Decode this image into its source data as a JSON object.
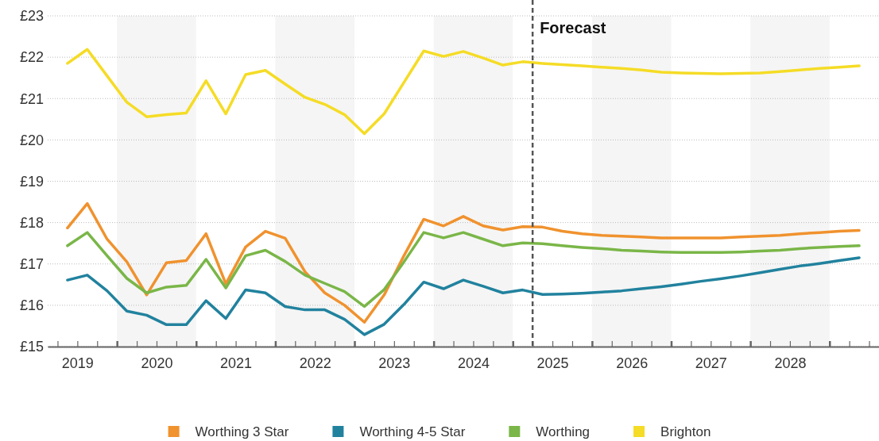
{
  "chart_data": {
    "type": "line",
    "x": [
      2019.375,
      2019.625,
      2019.875,
      2020.125,
      2020.375,
      2020.625,
      2020.875,
      2021.125,
      2021.375,
      2021.625,
      2021.875,
      2022.125,
      2022.375,
      2022.625,
      2022.875,
      2023.125,
      2023.375,
      2023.625,
      2023.875,
      2024.125,
      2024.375,
      2024.625,
      2024.875,
      2025.125,
      2025.375,
      2025.625,
      2025.875,
      2026.125,
      2026.375,
      2026.625,
      2026.875,
      2027.125,
      2027.375,
      2027.625,
      2027.875,
      2028.125,
      2028.375,
      2028.625,
      2028.875,
      2029.125,
      2029.375
    ],
    "series": [
      {
        "name": "Worthing 3 Star",
        "color": "#f0922e",
        "values": [
          17.87,
          18.46,
          17.6,
          17.05,
          16.25,
          17.03,
          17.08,
          17.73,
          16.52,
          17.41,
          17.79,
          17.62,
          16.81,
          16.3,
          16.0,
          15.59,
          16.25,
          17.2,
          18.08,
          17.92,
          18.15,
          17.92,
          17.82,
          17.9,
          17.89,
          17.79,
          17.73,
          17.69,
          17.67,
          17.65,
          17.63,
          17.63,
          17.63,
          17.63,
          17.65,
          17.67,
          17.69,
          17.73,
          17.76,
          17.79,
          17.81
        ]
      },
      {
        "name": "Worthing 4-5 Star",
        "color": "#21829e",
        "values": [
          16.61,
          16.73,
          16.35,
          15.86,
          15.76,
          15.53,
          15.53,
          16.11,
          15.68,
          16.37,
          16.3,
          15.97,
          15.89,
          15.89,
          15.66,
          15.29,
          15.54,
          16.02,
          16.56,
          16.4,
          16.61,
          16.46,
          16.3,
          16.37,
          16.26,
          16.27,
          16.29,
          16.32,
          16.35,
          16.4,
          16.45,
          16.51,
          16.58,
          16.64,
          16.71,
          16.79,
          16.87,
          16.95,
          17.01,
          17.08,
          17.15
        ]
      },
      {
        "name": "Worthing",
        "color": "#7ab648",
        "values": [
          17.44,
          17.76,
          17.2,
          16.65,
          16.3,
          16.44,
          16.48,
          17.11,
          16.42,
          17.2,
          17.33,
          17.06,
          16.73,
          16.53,
          16.33,
          15.97,
          16.38,
          17.05,
          17.76,
          17.63,
          17.76,
          17.6,
          17.44,
          17.51,
          17.49,
          17.44,
          17.4,
          17.37,
          17.33,
          17.31,
          17.29,
          17.28,
          17.28,
          17.28,
          17.29,
          17.31,
          17.33,
          17.37,
          17.4,
          17.42,
          17.44
        ]
      },
      {
        "name": "Brighton",
        "color": "#f5dc26",
        "values": [
          21.85,
          22.19,
          21.55,
          20.91,
          20.56,
          20.61,
          20.65,
          21.43,
          20.63,
          21.58,
          21.68,
          21.35,
          21.03,
          20.86,
          20.61,
          20.15,
          20.63,
          21.39,
          22.15,
          22.02,
          22.14,
          21.98,
          21.81,
          21.89,
          21.85,
          21.82,
          21.79,
          21.76,
          21.73,
          21.69,
          21.64,
          21.62,
          21.61,
          21.6,
          21.61,
          21.62,
          21.65,
          21.69,
          21.73,
          21.76,
          21.79
        ]
      }
    ],
    "xlim": [
      2019.125,
      2029.625
    ],
    "xticks": [
      {
        "value": 2019.25,
        "label": null
      },
      {
        "value": 2019.5,
        "label": "2019"
      },
      {
        "value": 2019.75,
        "label": null
      },
      {
        "value": 2020,
        "label": null
      },
      {
        "value": 2020.25,
        "label": null
      },
      {
        "value": 2020.5,
        "label": "2020"
      },
      {
        "value": 2020.75,
        "label": null
      },
      {
        "value": 2021,
        "label": null
      },
      {
        "value": 2021.25,
        "label": null
      },
      {
        "value": 2021.5,
        "label": "2021"
      },
      {
        "value": 2021.75,
        "label": null
      },
      {
        "value": 2022,
        "label": null
      },
      {
        "value": 2022.25,
        "label": null
      },
      {
        "value": 2022.5,
        "label": "2022"
      },
      {
        "value": 2022.75,
        "label": null
      },
      {
        "value": 2023,
        "label": null
      },
      {
        "value": 2023.25,
        "label": null
      },
      {
        "value": 2023.5,
        "label": "2023"
      },
      {
        "value": 2023.75,
        "label": null
      },
      {
        "value": 2024,
        "label": null
      },
      {
        "value": 2024.25,
        "label": null
      },
      {
        "value": 2024.5,
        "label": "2024"
      },
      {
        "value": 2024.75,
        "label": null
      },
      {
        "value": 2025,
        "label": null
      },
      {
        "value": 2025.25,
        "label": null
      },
      {
        "value": 2025.5,
        "label": "2025"
      },
      {
        "value": 2025.75,
        "label": null
      },
      {
        "value": 2026,
        "label": null
      },
      {
        "value": 2026.25,
        "label": null
      },
      {
        "value": 2026.5,
        "label": "2026"
      },
      {
        "value": 2026.75,
        "label": null
      },
      {
        "value": 2027,
        "label": null
      },
      {
        "value": 2027.25,
        "label": null
      },
      {
        "value": 2027.5,
        "label": "2027"
      },
      {
        "value": 2027.75,
        "label": null
      },
      {
        "value": 2028,
        "label": null
      },
      {
        "value": 2028.25,
        "label": null
      },
      {
        "value": 2028.5,
        "label": "2028"
      },
      {
        "value": 2028.75,
        "label": null
      },
      {
        "value": 2029,
        "label": null
      },
      {
        "value": 2029.25,
        "label": null
      },
      {
        "value": 2029.5,
        "label": null
      }
    ],
    "ylim": [
      15,
      23
    ],
    "yticks": [
      {
        "value": 15,
        "label": "£15"
      },
      {
        "value": 16,
        "label": "£16"
      },
      {
        "value": 17,
        "label": "£17"
      },
      {
        "value": 18,
        "label": "£18"
      },
      {
        "value": 19,
        "label": "£19"
      },
      {
        "value": 20,
        "label": "£20"
      },
      {
        "value": 21,
        "label": "£21"
      },
      {
        "value": 22,
        "label": "£22"
      },
      {
        "value": 23,
        "label": "£23"
      }
    ],
    "grid": "y",
    "legend": "bottom",
    "marker": "none",
    "line_style": "solid",
    "ref_lines": [
      {
        "axis": "x",
        "value": 2025.25,
        "label": "Forecast",
        "color": "#555555",
        "line_style": "dashed"
      }
    ],
    "bands": [
      {
        "axis": "x",
        "from": 2020,
        "to": 2021,
        "color": "#f5f5f5"
      },
      {
        "axis": "x",
        "from": 2022,
        "to": 2023,
        "color": "#f5f5f5"
      },
      {
        "axis": "x",
        "from": 2024,
        "to": 2025,
        "color": "#f5f5f5"
      },
      {
        "axis": "x",
        "from": 2026,
        "to": 2027,
        "color": "#f5f5f5"
      },
      {
        "axis": "x",
        "from": 2028,
        "to": 2029,
        "color": "#f5f5f5"
      }
    ]
  }
}
